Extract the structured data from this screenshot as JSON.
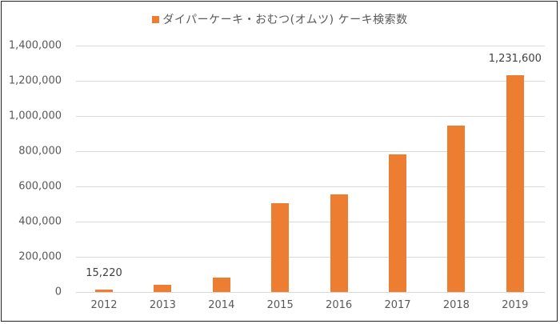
{
  "chart_data": {
    "type": "bar",
    "title": "",
    "legend": {
      "position": "top",
      "entries": [
        {
          "name": "ダイパーケーキ・おむつ(オムツ) ケーキ検索数",
          "color": "#ED7D31"
        }
      ]
    },
    "categories": [
      "2012",
      "2013",
      "2014",
      "2015",
      "2016",
      "2017",
      "2018",
      "2019"
    ],
    "series": [
      {
        "name": "ダイパーケーキ・おむつ(オムツ) ケーキ検索数",
        "color": "#ED7D31",
        "values": [
          15220,
          40000,
          82000,
          505000,
          555000,
          782000,
          945000,
          1231600
        ]
      }
    ],
    "data_labels": [
      {
        "category": "2012",
        "text": "15,220"
      },
      {
        "category": "2019",
        "text": "1,231,600"
      }
    ],
    "xlabel": "",
    "ylabel": "",
    "ylim": [
      0,
      1400000
    ],
    "yticks": [
      "0",
      "200,000",
      "400,000",
      "600,000",
      "800,000",
      "1,000,000",
      "1,200,000",
      "1,400,000"
    ],
    "grid": true
  },
  "legend_text": "ダイパーケーキ・おむつ(オムツ) ケーキ検索数"
}
